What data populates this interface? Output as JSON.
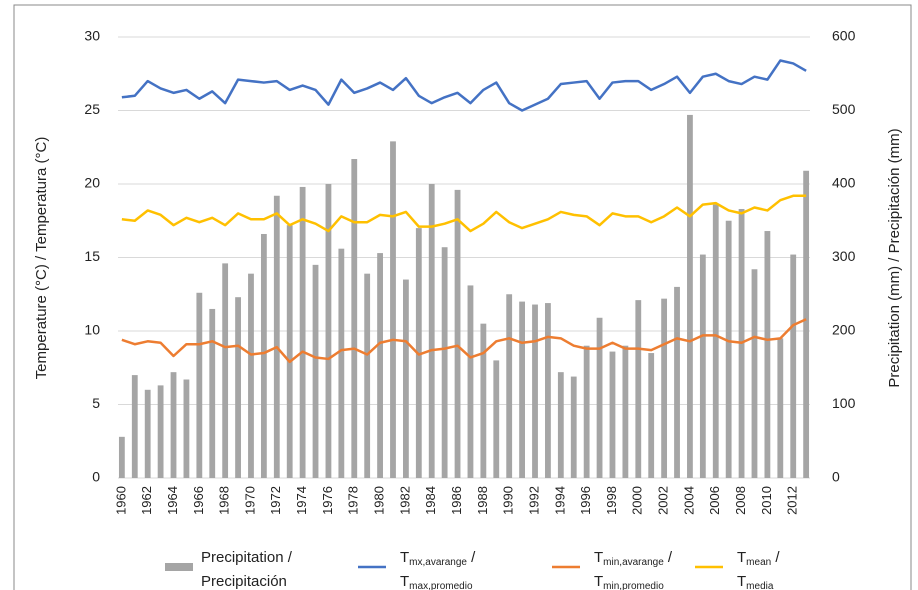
{
  "chart_data": {
    "type": "bar-line",
    "x": [
      1960,
      1961,
      1962,
      1963,
      1964,
      1965,
      1966,
      1967,
      1968,
      1969,
      1970,
      1971,
      1972,
      1973,
      1974,
      1975,
      1976,
      1977,
      1978,
      1979,
      1980,
      1981,
      1982,
      1983,
      1984,
      1985,
      1986,
      1987,
      1988,
      1989,
      1990,
      1991,
      1992,
      1993,
      1994,
      1995,
      1996,
      1997,
      1998,
      1999,
      2000,
      2001,
      2002,
      2003,
      2004,
      2005,
      2006,
      2007,
      2008,
      2009,
      2010,
      2011,
      2012,
      2013
    ],
    "xticks": [
      1960,
      1962,
      1964,
      1966,
      1968,
      1970,
      1972,
      1974,
      1976,
      1978,
      1980,
      1982,
      1984,
      1986,
      1988,
      1990,
      1992,
      1994,
      1996,
      1998,
      2000,
      2002,
      2004,
      2006,
      2008,
      2010,
      2012
    ],
    "xlim": [
      1959.7,
      2013.3
    ],
    "y_label": "Temperature (°C) / Temperatura (°C)",
    "y2_label": "Precipitation (mm) / Precipitación (mm)",
    "ylim": [
      0,
      30
    ],
    "yticks": [
      0,
      5,
      10,
      15,
      20,
      25,
      30
    ],
    "y2lim": [
      0,
      600
    ],
    "y2ticks": [
      0,
      100,
      200,
      300,
      400,
      500,
      600
    ],
    "grid": true,
    "series": [
      {
        "name": "Precipitation / Precipitación",
        "kind": "bar",
        "axis": "y2",
        "color": "#a5a5a5",
        "values": [
          56,
          140,
          120,
          126,
          144,
          134,
          252,
          230,
          292,
          246,
          278,
          332,
          384,
          344,
          396,
          290,
          400,
          312,
          434,
          278,
          306,
          458,
          270,
          340,
          400,
          314,
          392,
          262,
          210,
          160,
          250,
          240,
          236,
          238,
          144,
          138,
          180,
          218,
          172,
          180,
          242,
          170,
          244,
          260,
          494,
          304,
          372,
          350,
          366,
          284,
          336,
          190,
          304,
          418
        ]
      },
      {
        "name": "Tmx,avarange / Tmax,promedio",
        "kind": "line",
        "color": "#4472c4",
        "values": [
          25.9,
          26.0,
          27.0,
          26.5,
          26.2,
          26.4,
          25.8,
          26.3,
          25.5,
          27.1,
          27.0,
          26.9,
          27.0,
          26.4,
          26.7,
          26.4,
          25.4,
          27.1,
          26.2,
          26.5,
          26.9,
          26.4,
          27.2,
          26.0,
          25.5,
          25.9,
          26.2,
          25.5,
          26.4,
          26.9,
          25.5,
          25.0,
          25.4,
          25.8,
          26.8,
          26.9,
          27.0,
          25.8,
          26.9,
          27.0,
          27.0,
          26.4,
          26.8,
          27.3,
          26.2,
          27.3,
          27.5,
          27.0,
          26.8,
          27.3,
          27.1,
          28.4,
          28.2,
          27.7
        ]
      },
      {
        "name": "Tmin,avarange / Tmin,promedio",
        "kind": "line",
        "color": "#ed7d31",
        "values": [
          9.4,
          9.1,
          9.3,
          9.2,
          8.3,
          9.1,
          9.1,
          9.3,
          8.9,
          9.0,
          8.4,
          8.5,
          8.9,
          7.9,
          8.6,
          8.2,
          8.1,
          8.7,
          8.8,
          8.4,
          9.2,
          9.4,
          9.3,
          8.4,
          8.7,
          8.8,
          9.0,
          8.2,
          8.5,
          9.3,
          9.5,
          9.2,
          9.3,
          9.6,
          9.5,
          9.0,
          8.8,
          8.8,
          9.2,
          8.8,
          8.8,
          8.7,
          9.1,
          9.5,
          9.3,
          9.7,
          9.7,
          9.3,
          9.2,
          9.6,
          9.4,
          9.5,
          10.4,
          10.8
        ]
      },
      {
        "name": "Tmean / Tmedia",
        "kind": "line",
        "color": "#ffc000",
        "values": [
          17.6,
          17.5,
          18.2,
          17.9,
          17.2,
          17.7,
          17.4,
          17.7,
          17.2,
          18.0,
          17.6,
          17.6,
          18.0,
          17.2,
          17.6,
          17.3,
          16.8,
          17.8,
          17.4,
          17.4,
          17.9,
          17.8,
          18.1,
          17.1,
          17.1,
          17.3,
          17.6,
          16.8,
          17.3,
          18.1,
          17.4,
          17.0,
          17.3,
          17.6,
          18.1,
          17.9,
          17.8,
          17.2,
          18.0,
          17.8,
          17.8,
          17.4,
          17.8,
          18.4,
          17.8,
          18.6,
          18.7,
          18.2,
          18.0,
          18.4,
          18.2,
          18.9,
          19.2,
          19.2
        ]
      }
    ]
  }
}
